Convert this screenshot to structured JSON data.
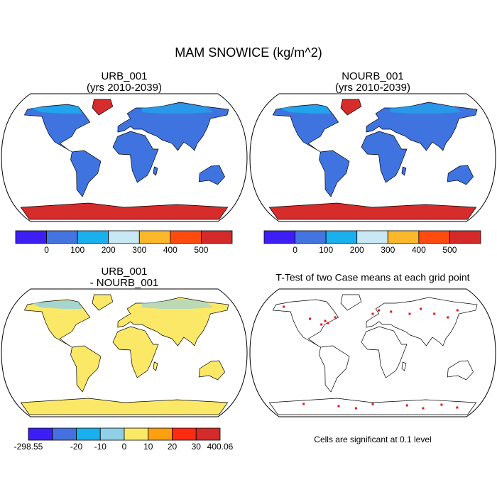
{
  "title": "MAM SNOWICE (kg/m^2)",
  "panels": [
    {
      "title": [
        "URB_001",
        "(yrs 2010-2039)"
      ],
      "colorbar": {
        "colors": [
          "#3d1ef5",
          "#4474e0",
          "#1ab0ee",
          "#c7e8f4",
          "#fbb82a",
          "#ff4a10",
          "#d42a2a"
        ],
        "labels": [
          null,
          0,
          100,
          200,
          300,
          400,
          500,
          null
        ]
      }
    },
    {
      "title": [
        "NOURB_001",
        "(yrs 2010-2039)"
      ],
      "colorbar": {
        "colors": [
          "#3d1ef5",
          "#4474e0",
          "#1ab0ee",
          "#c7e8f4",
          "#fbb82a",
          "#ff4a10",
          "#d42a2a"
        ],
        "labels": [
          null,
          0,
          100,
          200,
          300,
          400,
          500,
          null
        ]
      }
    },
    {
      "title": [
        "URB_001",
        "- NOURB_001"
      ],
      "colorbar": {
        "colors": [
          "#3d1ef5",
          "#4470e0",
          "#1ab0ee",
          "#8fcfe8",
          "#fbe867",
          "#fba010",
          "#ff2a10",
          "#d42a2a"
        ],
        "labels": [
          -298.55,
          null,
          -20,
          -10,
          0,
          10,
          20,
          30,
          400.06
        ]
      }
    },
    {
      "title": [
        "T-Test of two Case means at each grid point"
      ],
      "note": "Cells are significant at 0.1 level"
    }
  ]
}
